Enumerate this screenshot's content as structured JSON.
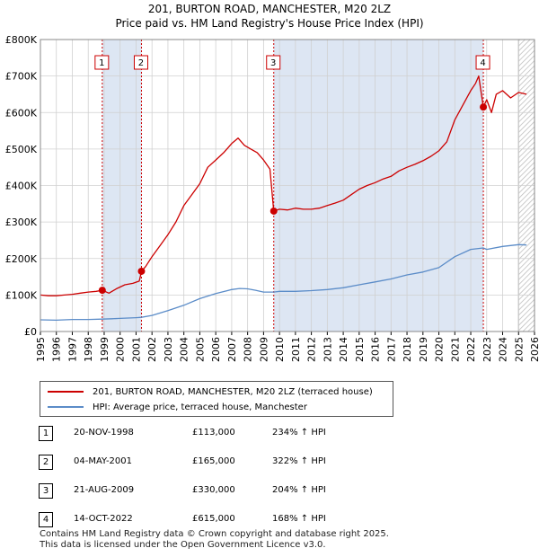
{
  "title_line1": "201, BURTON ROAD, MANCHESTER, M20 2LZ",
  "title_line2": "Price paid vs. HM Land Registry's House Price Index (HPI)",
  "colors": {
    "property": "#cc0000",
    "hpi": "#5b8cc8",
    "shade": "#dde6f3",
    "grid": "#d0d0d0",
    "future": "#dddddd"
  },
  "legend": {
    "property_label": "201, BURTON ROAD, MANCHESTER, M20 2LZ (terraced house)",
    "hpi_label": "HPI: Average price, terraced house, Manchester"
  },
  "sales": [
    {
      "num": "1",
      "date": "20-NOV-1998",
      "price": "£113,000",
      "hpi": "234% ↑ HPI"
    },
    {
      "num": "2",
      "date": "04-MAY-2001",
      "price": "£165,000",
      "hpi": "322% ↑ HPI"
    },
    {
      "num": "3",
      "date": "21-AUG-2009",
      "price": "£330,000",
      "hpi": "204% ↑ HPI"
    },
    {
      "num": "4",
      "date": "14-OCT-2022",
      "price": "£615,000",
      "hpi": "168% ↑ HPI"
    }
  ],
  "footer_line1": "Contains HM Land Registry data © Crown copyright and database right 2025.",
  "footer_line2": "This data is licensed under the Open Government Licence v3.0.",
  "chart_data": {
    "type": "line",
    "title": "201, BURTON ROAD, MANCHESTER, M20 2LZ — Price paid vs. HM Land Registry's House Price Index (HPI)",
    "xlabel": "",
    "ylabel": "",
    "xlim": [
      1995,
      2026
    ],
    "ylim": [
      0,
      800000
    ],
    "x_ticks": [
      "1995",
      "1996",
      "1997",
      "1998",
      "1999",
      "2000",
      "2001",
      "2002",
      "2003",
      "2004",
      "2005",
      "2006",
      "2007",
      "2008",
      "2009",
      "2010",
      "2011",
      "2012",
      "2013",
      "2014",
      "2015",
      "2016",
      "2017",
      "2018",
      "2019",
      "2020",
      "2021",
      "2022",
      "2023",
      "2024",
      "2025",
      "2026"
    ],
    "y_ticks": [
      {
        "value": 0,
        "label": "£0"
      },
      {
        "value": 100000,
        "label": "£100K"
      },
      {
        "value": 200000,
        "label": "£200K"
      },
      {
        "value": 300000,
        "label": "£300K"
      },
      {
        "value": 400000,
        "label": "£400K"
      },
      {
        "value": 500000,
        "label": "£500K"
      },
      {
        "value": 600000,
        "label": "£600K"
      },
      {
        "value": 700000,
        "label": "£700K"
      },
      {
        "value": 800000,
        "label": "£800K"
      }
    ],
    "grid": true,
    "future_from": 2025.0,
    "series": [
      {
        "name": "201, BURTON ROAD, MANCHESTER, M20 2LZ (terraced house)",
        "x": [
          1995.0,
          1995.5,
          1996.0,
          1996.5,
          1997.0,
          1997.5,
          1998.0,
          1998.5,
          1998.88,
          1999.3,
          1999.8,
          2000.3,
          2000.8,
          2001.2,
          2001.34,
          2001.6,
          2002.0,
          2002.5,
          2003.0,
          2003.5,
          2004.0,
          2004.5,
          2005.0,
          2005.5,
          2006.0,
          2006.5,
          2007.0,
          2007.4,
          2007.8,
          2008.2,
          2008.6,
          2009.0,
          2009.4,
          2009.64,
          2010.0,
          2010.5,
          2011.0,
          2011.5,
          2012.0,
          2012.5,
          2013.0,
          2013.5,
          2014.0,
          2014.5,
          2015.0,
          2015.5,
          2016.0,
          2016.5,
          2017.0,
          2017.5,
          2018.0,
          2018.5,
          2019.0,
          2019.5,
          2020.0,
          2020.5,
          2021.0,
          2021.5,
          2022.0,
          2022.3,
          2022.5,
          2022.79,
          2023.0,
          2023.3,
          2023.6,
          2024.0,
          2024.5,
          2025.0,
          2025.5
        ],
        "values": [
          100000,
          98000,
          98000,
          100000,
          102000,
          105000,
          108000,
          110000,
          113000,
          105000,
          118000,
          128000,
          132000,
          138000,
          165000,
          178000,
          205000,
          235000,
          265000,
          300000,
          345000,
          375000,
          405000,
          450000,
          470000,
          490000,
          515000,
          530000,
          510000,
          500000,
          490000,
          470000,
          445000,
          330000,
          335000,
          333000,
          338000,
          335000,
          335000,
          338000,
          345000,
          352000,
          360000,
          375000,
          390000,
          400000,
          408000,
          418000,
          425000,
          440000,
          450000,
          458000,
          468000,
          480000,
          495000,
          520000,
          580000,
          620000,
          660000,
          680000,
          700000,
          615000,
          635000,
          600000,
          650000,
          660000,
          640000,
          655000,
          650000
        ]
      },
      {
        "name": "HPI: Average price, terraced house, Manchester",
        "x": [
          1995.0,
          1996.0,
          1997.0,
          1998.0,
          1998.88,
          1999.5,
          2000.0,
          2001.0,
          2001.34,
          2002.0,
          2003.0,
          2004.0,
          2005.0,
          2006.0,
          2007.0,
          2007.5,
          2008.0,
          2008.5,
          2009.0,
          2009.64,
          2010.0,
          2011.0,
          2012.0,
          2013.0,
          2014.0,
          2015.0,
          2016.0,
          2017.0,
          2018.0,
          2019.0,
          2020.0,
          2021.0,
          2022.0,
          2022.79,
          2023.0,
          2024.0,
          2025.0,
          2025.5
        ],
        "values": [
          32000,
          31000,
          33000,
          33000,
          34000,
          35000,
          36000,
          38000,
          39000,
          44000,
          57000,
          72000,
          90000,
          104000,
          115000,
          118000,
          117000,
          113000,
          108000,
          108000,
          110000,
          110000,
          112000,
          115000,
          120000,
          128000,
          136000,
          144000,
          155000,
          163000,
          175000,
          205000,
          225000,
          229000,
          225000,
          233000,
          238000,
          237000
        ]
      }
    ],
    "markers": [
      {
        "label": "1",
        "x": 1998.88,
        "y": 113000
      },
      {
        "label": "2",
        "x": 2001.34,
        "y": 165000
      },
      {
        "label": "3",
        "x": 2009.64,
        "y": 330000
      },
      {
        "label": "4",
        "x": 2022.79,
        "y": 615000
      }
    ],
    "shaded_spans": [
      [
        1998.88,
        2001.34
      ],
      [
        2009.64,
        2022.79
      ]
    ]
  }
}
